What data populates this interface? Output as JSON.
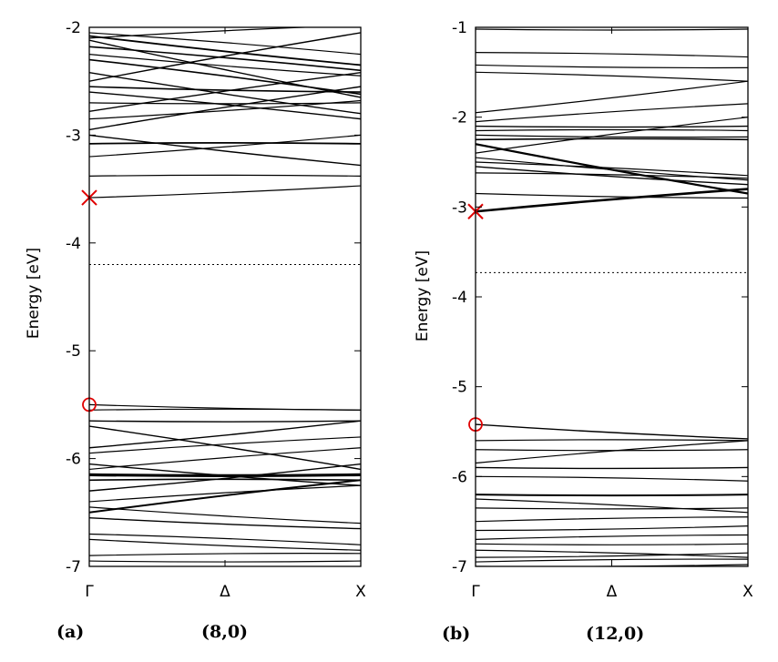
{
  "chart_data": [
    {
      "type": "line",
      "panel_label": "(a)",
      "caption": "(8,0)",
      "ylabel": "Energy [eV]",
      "ylim": [
        -7,
        -2
      ],
      "xlim": [
        0,
        1
      ],
      "x_ticks": [
        {
          "x": 0,
          "label": "Γ"
        },
        {
          "x": 0.5,
          "label": "Δ"
        },
        {
          "x": 1,
          "label": "X"
        }
      ],
      "y_ticks": [
        -2,
        -3,
        -4,
        -5,
        -6,
        -7
      ],
      "fermi_level": -4.2,
      "markers": [
        {
          "type": "cross",
          "x": 0,
          "y": -3.58,
          "color": "#e00000"
        },
        {
          "type": "circle",
          "x": 0,
          "y": -5.5,
          "color": "#e00000"
        }
      ],
      "bands": [
        {
          "y0": -3.58,
          "y1": -3.47,
          "w": 1.2
        },
        {
          "y0": -3.38,
          "y1": -3.38,
          "w": 1.2
        },
        {
          "y0": -3.2,
          "y1": -3.0,
          "w": 1.2
        },
        {
          "y0": -3.08,
          "y1": -3.08,
          "w": 1.8
        },
        {
          "y0": -3.0,
          "y1": -3.28,
          "w": 1.4
        },
        {
          "y0": -2.95,
          "y1": -2.55,
          "w": 1.4
        },
        {
          "y0": -2.85,
          "y1": -2.68,
          "w": 1.2
        },
        {
          "y0": -2.78,
          "y1": -2.42,
          "w": 1.4
        },
        {
          "y0": -2.7,
          "y1": -2.7,
          "w": 1.2
        },
        {
          "y0": -2.6,
          "y1": -2.85,
          "w": 1.4
        },
        {
          "y0": -2.55,
          "y1": -2.6,
          "w": 1.6
        },
        {
          "y0": -2.5,
          "y1": -2.05,
          "w": 1.4
        },
        {
          "y0": -2.42,
          "y1": -2.8,
          "w": 1.4
        },
        {
          "y0": -2.3,
          "y1": -2.62,
          "w": 1.6
        },
        {
          "y0": -2.25,
          "y1": -2.45,
          "w": 1.2
        },
        {
          "y0": -2.18,
          "y1": -2.4,
          "w": 1.6
        },
        {
          "y0": -2.12,
          "y1": -2.65,
          "w": 1.4
        },
        {
          "y0": -2.1,
          "y1": -1.98,
          "w": 1.2
        },
        {
          "y0": -2.08,
          "y1": -2.35,
          "w": 1.8
        },
        {
          "y0": -2.05,
          "y1": -2.25,
          "w": 1.2
        },
        {
          "y0": -5.5,
          "y1": -5.55,
          "w": 1.2
        },
        {
          "y0": -5.55,
          "y1": -5.55,
          "w": 1.2
        },
        {
          "y0": -5.65,
          "y1": -5.65,
          "w": 1.4
        },
        {
          "y0": -5.7,
          "y1": -6.1,
          "w": 1.4
        },
        {
          "y0": -5.9,
          "y1": -5.65,
          "w": 1.4
        },
        {
          "y0": -5.95,
          "y1": -5.8,
          "w": 1.2
        },
        {
          "y0": -6.05,
          "y1": -6.25,
          "w": 1.4
        },
        {
          "y0": -6.1,
          "y1": -5.9,
          "w": 1.2
        },
        {
          "y0": -6.15,
          "y1": -6.15,
          "w": 3.2
        },
        {
          "y0": -6.2,
          "y1": -6.2,
          "w": 1.6
        },
        {
          "y0": -6.3,
          "y1": -6.05,
          "w": 1.4
        },
        {
          "y0": -6.4,
          "y1": -6.25,
          "w": 1.2
        },
        {
          "y0": -6.45,
          "y1": -6.6,
          "w": 1.2
        },
        {
          "y0": -6.5,
          "y1": -6.2,
          "w": 2.0
        },
        {
          "y0": -6.55,
          "y1": -6.65,
          "w": 1.4
        },
        {
          "y0": -6.7,
          "y1": -6.8,
          "w": 1.2
        },
        {
          "y0": -6.75,
          "y1": -6.85,
          "w": 1.2
        },
        {
          "y0": -6.9,
          "y1": -6.88,
          "w": 1.2
        },
        {
          "y0": -6.95,
          "y1": -6.95,
          "w": 1.2
        }
      ]
    },
    {
      "type": "line",
      "panel_label": "(b)",
      "caption": "(12,0)",
      "ylabel": "Energy [eV]",
      "ylim": [
        -7,
        -1
      ],
      "xlim": [
        0,
        1
      ],
      "x_ticks": [
        {
          "x": 0,
          "label": "Γ"
        },
        {
          "x": 0.5,
          "label": "Δ"
        },
        {
          "x": 1,
          "label": "X"
        }
      ],
      "y_ticks": [
        -1,
        -2,
        -3,
        -4,
        -5,
        -6,
        -7
      ],
      "fermi_level": -3.73,
      "markers": [
        {
          "type": "cross",
          "x": 0,
          "y": -3.05,
          "color": "#e00000"
        },
        {
          "type": "circle",
          "x": 0,
          "y": -5.42,
          "color": "#e00000"
        }
      ],
      "bands": [
        {
          "y0": -1.02,
          "y1": -1.02,
          "w": 1.2
        },
        {
          "y0": -1.28,
          "y1": -1.33,
          "w": 1.2
        },
        {
          "y0": -1.42,
          "y1": -1.45,
          "w": 1.2
        },
        {
          "y0": -1.5,
          "y1": -1.6,
          "w": 1.2
        },
        {
          "y0": -1.95,
          "y1": -1.6,
          "w": 1.2
        },
        {
          "y0": -2.05,
          "y1": -1.85,
          "w": 1.2
        },
        {
          "y0": -2.1,
          "y1": -2.1,
          "w": 1.4
        },
        {
          "y0": -2.15,
          "y1": -2.15,
          "w": 1.2
        },
        {
          "y0": -2.2,
          "y1": -2.22,
          "w": 1.2
        },
        {
          "y0": -2.25,
          "y1": -2.25,
          "w": 1.6
        },
        {
          "y0": -2.3,
          "y1": -2.85,
          "w": 2.2
        },
        {
          "y0": -2.4,
          "y1": -2.0,
          "w": 1.2
        },
        {
          "y0": -2.45,
          "y1": -2.7,
          "w": 1.2
        },
        {
          "y0": -2.5,
          "y1": -2.65,
          "w": 1.2
        },
        {
          "y0": -2.55,
          "y1": -2.75,
          "w": 1.4
        },
        {
          "y0": -2.62,
          "y1": -2.68,
          "w": 1.2
        },
        {
          "y0": -2.85,
          "y1": -2.9,
          "w": 1.2
        },
        {
          "y0": -3.05,
          "y1": -2.8,
          "w": 2.6
        },
        {
          "y0": -5.42,
          "y1": -5.58,
          "w": 1.4
        },
        {
          "y0": -5.6,
          "y1": -5.6,
          "w": 1.2
        },
        {
          "y0": -5.7,
          "y1": -5.7,
          "w": 1.2
        },
        {
          "y0": -5.85,
          "y1": -5.6,
          "w": 1.2
        },
        {
          "y0": -5.9,
          "y1": -5.9,
          "w": 1.4
        },
        {
          "y0": -6.0,
          "y1": -6.05,
          "w": 1.2
        },
        {
          "y0": -6.2,
          "y1": -6.2,
          "w": 2.0
        },
        {
          "y0": -6.25,
          "y1": -6.4,
          "w": 1.2
        },
        {
          "y0": -6.35,
          "y1": -6.35,
          "w": 1.2
        },
        {
          "y0": -6.5,
          "y1": -6.45,
          "w": 1.2
        },
        {
          "y0": -6.6,
          "y1": -6.55,
          "w": 1.2
        },
        {
          "y0": -6.7,
          "y1": -6.65,
          "w": 1.2
        },
        {
          "y0": -6.75,
          "y1": -6.75,
          "w": 1.2
        },
        {
          "y0": -6.82,
          "y1": -6.9,
          "w": 1.2
        },
        {
          "y0": -6.9,
          "y1": -6.85,
          "w": 1.2
        },
        {
          "y0": -6.95,
          "y1": -6.92,
          "w": 1.2
        },
        {
          "y0": -7.0,
          "y1": -6.98,
          "w": 1.2
        }
      ]
    }
  ]
}
